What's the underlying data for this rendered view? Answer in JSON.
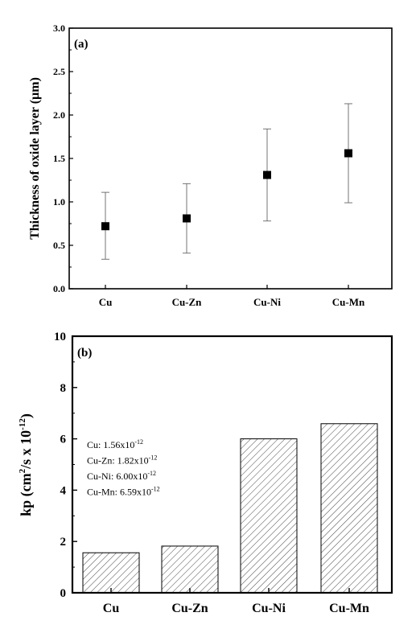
{
  "chart_data": [
    {
      "type": "scatter",
      "panel_label": "(a)",
      "categories": [
        "Cu",
        "Cu-Zn",
        "Cu-Ni",
        "Cu-Mn"
      ],
      "values": [
        0.72,
        0.81,
        1.31,
        1.56
      ],
      "error_low": [
        0.34,
        0.41,
        0.78,
        0.99
      ],
      "error_high": [
        1.11,
        1.21,
        1.84,
        2.13
      ],
      "xlabel": "",
      "ylabel": "Thickness of oxide layer (µm)",
      "ylim": [
        0.0,
        3.0
      ],
      "yticks": [
        "0.0",
        "0.5",
        "1.0",
        "1.5",
        "2.0",
        "2.5",
        "3.0"
      ],
      "marker": "square",
      "grid": false
    },
    {
      "type": "bar",
      "panel_label": "(b)",
      "categories": [
        "Cu",
        "Cu-Zn",
        "Cu-Ni",
        "Cu-Mn"
      ],
      "values": [
        1.56,
        1.82,
        6.0,
        6.59
      ],
      "xlabel": "",
      "ylabel": {
        "base": "kp (cm",
        "sup1": "2",
        "mid": "/s x 10",
        "sup2": "-12",
        "end": ")"
      },
      "ylim": [
        0,
        10
      ],
      "yticks": [
        "0",
        "2",
        "4",
        "6",
        "8",
        "10"
      ],
      "fill": "hatched",
      "grid": false,
      "annotations": [
        {
          "label": "Cu: 1.56x10",
          "exp": "-12"
        },
        {
          "label": "Cu-Zn: 1.82x10",
          "exp": "-12"
        },
        {
          "label": "Cu-Ni: 6.00x10",
          "exp": "-12"
        },
        {
          "label": "Cu-Mn: 6.59x10",
          "exp": "-12"
        }
      ]
    }
  ]
}
